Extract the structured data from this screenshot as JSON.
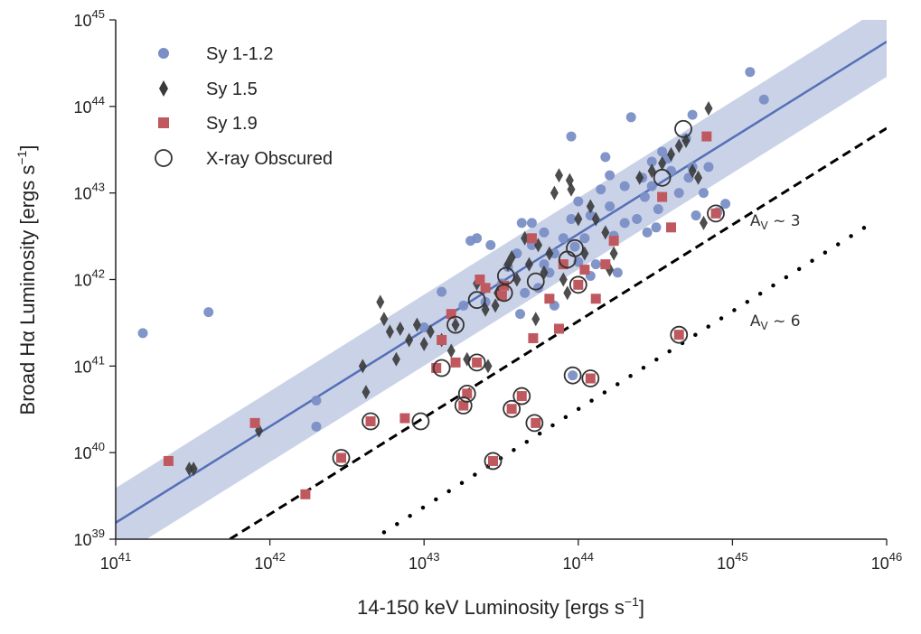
{
  "chart_data": {
    "type": "scatter",
    "xlabel": "14-150 keV Luminosity [ergs s⁻¹]",
    "ylabel": "Broad Hα Luminosity [ergs s⁻¹]",
    "xscale": "log",
    "yscale": "log",
    "xlim": [
      1e+41,
      1e+46
    ],
    "ylim": [
      1e+39,
      1e+45
    ],
    "x_ticks": [
      {
        "base": "10",
        "exp": "41"
      },
      {
        "base": "10",
        "exp": "42"
      },
      {
        "base": "10",
        "exp": "43"
      },
      {
        "base": "10",
        "exp": "44"
      },
      {
        "base": "10",
        "exp": "45"
      },
      {
        "base": "10",
        "exp": "46"
      }
    ],
    "y_ticks": [
      {
        "base": "10",
        "exp": "39"
      },
      {
        "base": "10",
        "exp": "40"
      },
      {
        "base": "10",
        "exp": "41"
      },
      {
        "base": "10",
        "exp": "42"
      },
      {
        "base": "10",
        "exp": "43"
      },
      {
        "base": "10",
        "exp": "44"
      },
      {
        "base": "10",
        "exp": "45"
      }
    ],
    "grid": false,
    "legend_position": "top-left",
    "colors": {
      "sy1": "#7a8fc6",
      "sy15": "#3a3a3a",
      "sy19": "#c0585f",
      "fit_line": "#5470b6",
      "band": "#b8c3e0",
      "obscured": "#333333",
      "ref_lines": "#000000"
    },
    "series": [
      {
        "name": "Sy 1-1.2",
        "marker": "circle",
        "points": [
          [
            4e+41,
            4.2e+41
          ],
          [
            1.5e+41,
            2.4e+41
          ],
          [
            2e+42,
            4e+40
          ],
          [
            2e+42,
            2e+40
          ],
          [
            1e+43,
            2.8e+41
          ],
          [
            1.3e+43,
            7.2e+41
          ],
          [
            1.8e+43,
            5e+41
          ],
          [
            2e+43,
            2.8e+42
          ],
          [
            2.2e+43,
            3e+42
          ],
          [
            2.5e+43,
            5.5e+41
          ],
          [
            2.7e+43,
            2.5e+42
          ],
          [
            3.2e+43,
            9e+41
          ],
          [
            3.5e+43,
            1.4e+42
          ],
          [
            4e+43,
            2e+42
          ],
          [
            4.2e+43,
            4e+41
          ],
          [
            4.3e+43,
            4.5e+42
          ],
          [
            4.5e+43,
            7e+41
          ],
          [
            5e+43,
            2.5e+42
          ],
          [
            5e+43,
            4.5e+42
          ],
          [
            5.5e+43,
            8e+41
          ],
          [
            6e+43,
            1.5e+42
          ],
          [
            6e+43,
            3.5e+42
          ],
          [
            6.5e+43,
            1.2e+42
          ],
          [
            7e+43,
            5e+41
          ],
          [
            7e+43,
            2e+42
          ],
          [
            8e+43,
            3e+42
          ],
          [
            9e+43,
            4.5e+43
          ],
          [
            9e+43,
            5e+42
          ],
          [
            9.5e+43,
            2.4e+42
          ],
          [
            1e+44,
            1.6e+42
          ],
          [
            1e+44,
            8e+42
          ],
          [
            1.1e+44,
            3e+42
          ],
          [
            1.2e+44,
            1.1e+42
          ],
          [
            1.2e+44,
            5.5e+42
          ],
          [
            1.3e+44,
            1.5e+42
          ],
          [
            1.4e+44,
            1.1e+43
          ],
          [
            1.5e+44,
            2.6e+43
          ],
          [
            1.6e+44,
            1.6e+43
          ],
          [
            1.6e+44,
            7e+42
          ],
          [
            1.8e+44,
            1.2e+42
          ],
          [
            2e+44,
            4.5e+42
          ],
          [
            2e+44,
            1.2e+43
          ],
          [
            2.2e+44,
            7.5e+43
          ],
          [
            2.4e+44,
            5e+42
          ],
          [
            2.6e+44,
            1.5e+43
          ],
          [
            2.8e+44,
            3.5e+42
          ],
          [
            3e+44,
            2.3e+43
          ],
          [
            3e+44,
            1.2e+43
          ],
          [
            3.2e+44,
            4e+42
          ],
          [
            3.5e+44,
            3e+43
          ],
          [
            3.8e+44,
            2.5e+43
          ],
          [
            4e+44,
            1.8e+43
          ],
          [
            4.5e+44,
            1e+43
          ],
          [
            5e+44,
            4.3e+43
          ],
          [
            5.2e+44,
            1.5e+43
          ],
          [
            5.5e+44,
            2e+43
          ],
          [
            5.5e+44,
            8e+43
          ],
          [
            5.8e+44,
            5.5e+42
          ],
          [
            6.5e+44,
            1e+43
          ],
          [
            7e+44,
            2e+43
          ],
          [
            8e+44,
            6e+42
          ],
          [
            9e+44,
            7.5e+42
          ],
          [
            1.3e+45,
            2.5e+44
          ],
          [
            1.6e+45,
            1.2e+44
          ],
          [
            3.3e+44,
            6.5e+42
          ],
          [
            2.7e+44,
            9e+42
          ],
          [
            1.7e+44,
            3.2e+42
          ],
          [
            9.2e+43,
            7.8e+40
          ]
        ]
      },
      {
        "name": "Sy 1.5",
        "marker": "diamond",
        "points": [
          [
            3e+41,
            6.5e+39
          ],
          [
            3.2e+41,
            6.5e+39
          ],
          [
            8.5e+41,
            1.8e+40
          ],
          [
            4e+42,
            1e+41
          ],
          [
            4.2e+42,
            5e+40
          ],
          [
            5.2e+42,
            5.5e+41
          ],
          [
            5.5e+42,
            3.5e+41
          ],
          [
            6e+42,
            2.5e+41
          ],
          [
            6.6e+42,
            1.2e+41
          ],
          [
            7e+42,
            2.7e+41
          ],
          [
            8e+42,
            2e+41
          ],
          [
            9e+42,
            3e+41
          ],
          [
            1e+43,
            1.8e+41
          ],
          [
            1.1e+43,
            2.5e+41
          ],
          [
            1.3e+43,
            2e+41
          ],
          [
            1.5e+43,
            1.5e+41
          ],
          [
            1.6e+43,
            3e+41
          ],
          [
            1.9e+43,
            1.2e+41
          ],
          [
            2.2e+43,
            9e+41
          ],
          [
            2.5e+43,
            4.5e+41
          ],
          [
            3e+43,
            7e+41
          ],
          [
            3.5e+43,
            1.5e+42
          ],
          [
            4e+43,
            1e+42
          ],
          [
            4.5e+43,
            3e+42
          ],
          [
            4.8e+43,
            1.5e+42
          ],
          [
            5.3e+43,
            3.5e+41
          ],
          [
            5.5e+43,
            2.5e+42
          ],
          [
            6e+43,
            1.2e+42
          ],
          [
            6.5e+43,
            2e+42
          ],
          [
            7e+43,
            1e+43
          ],
          [
            7.5e+43,
            1.6e+43
          ],
          [
            8e+43,
            1e+42
          ],
          [
            8.5e+43,
            7e+41
          ],
          [
            8.8e+43,
            1.4e+43
          ],
          [
            9e+43,
            1.1e+43
          ],
          [
            1e+44,
            5e+42
          ],
          [
            1.1e+44,
            2e+42
          ],
          [
            1.2e+44,
            7e+42
          ],
          [
            1.3e+44,
            5e+42
          ],
          [
            1.5e+44,
            3.5e+42
          ],
          [
            1.6e+44,
            1.3e+42
          ],
          [
            1.7e+44,
            2e+42
          ],
          [
            2.5e+44,
            1.5e+43
          ],
          [
            3e+44,
            1.8e+43
          ],
          [
            3.5e+44,
            2.2e+43
          ],
          [
            4e+44,
            2.8e+43
          ],
          [
            4.5e+44,
            3.5e+43
          ],
          [
            5e+44,
            4e+43
          ],
          [
            5.5e+44,
            1.8e+43
          ],
          [
            6e+44,
            1.5e+43
          ],
          [
            6.5e+44,
            4.5e+42
          ],
          [
            7e+44,
            9.5e+43
          ],
          [
            2.6e+43,
            1e+41
          ],
          [
            3.7e+43,
            1.8e+42
          ],
          [
            2.9e+43,
            5e+41
          ]
        ]
      },
      {
        "name": "Sy 1.9",
        "marker": "square",
        "points": [
          [
            2.2e+41,
            8e+39
          ],
          [
            8e+41,
            2.2e+40
          ],
          [
            1.7e+42,
            3.3e+39
          ],
          [
            2.9e+42,
            8.7e+39
          ],
          [
            4.5e+42,
            2.3e+40
          ],
          [
            7.5e+42,
            2.5e+40
          ],
          [
            1.2e+43,
            9.5e+40
          ],
          [
            1.3e+43,
            2e+41
          ],
          [
            1.5e+43,
            4e+41
          ],
          [
            1.8e+43,
            3.5e+40
          ],
          [
            1.9e+43,
            4.8e+40
          ],
          [
            2.2e+43,
            1.1e+41
          ],
          [
            2.3e+43,
            1e+42
          ],
          [
            2.5e+43,
            8e+41
          ],
          [
            2.8e+43,
            8e+39
          ],
          [
            3.2e+43,
            6.5e+41
          ],
          [
            3.3e+43,
            8.5e+41
          ],
          [
            3.7e+43,
            3.2e+40
          ],
          [
            4.3e+43,
            4.5e+40
          ],
          [
            5e+43,
            3e+42
          ],
          [
            5.1e+43,
            2.1e+41
          ],
          [
            5.3e+43,
            2.2e+40
          ],
          [
            6.5e+43,
            6e+41
          ],
          [
            7.5e+43,
            2.7e+41
          ],
          [
            8e+43,
            1.5e+42
          ],
          [
            1e+44,
            8.7e+41
          ],
          [
            1.1e+44,
            1.3e+42
          ],
          [
            1.2e+44,
            7.2e+40
          ],
          [
            1.3e+44,
            6e+41
          ],
          [
            1.5e+44,
            1.5e+42
          ],
          [
            1.7e+44,
            2.8e+42
          ],
          [
            3.5e+44,
            9e+42
          ],
          [
            4e+44,
            4e+42
          ],
          [
            4.5e+44,
            2.3e+41
          ],
          [
            6.8e+44,
            4.5e+43
          ],
          [
            7.8e+44,
            5.8e+42
          ],
          [
            1.6e+43,
            1.1e+41
          ]
        ]
      },
      {
        "name": "X-ray Obscured",
        "marker": "open-circle",
        "points": [
          [
            2.9e+42,
            8.7e+39
          ],
          [
            4.5e+42,
            2.3e+40
          ],
          [
            9.5e+42,
            2.3e+40
          ],
          [
            1.3e+43,
            9.5e+40
          ],
          [
            1.6e+43,
            3e+41
          ],
          [
            1.8e+43,
            3.5e+40
          ],
          [
            1.9e+43,
            4.8e+40
          ],
          [
            2.2e+43,
            1.1e+41
          ],
          [
            2.2e+43,
            5.8e+41
          ],
          [
            2.8e+43,
            8e+39
          ],
          [
            3.3e+43,
            7e+41
          ],
          [
            3.4e+43,
            1.1e+42
          ],
          [
            3.7e+43,
            3.2e+40
          ],
          [
            4.3e+43,
            4.5e+40
          ],
          [
            5.2e+43,
            2.2e+40
          ],
          [
            5.3e+43,
            9.5e+41
          ],
          [
            8.5e+43,
            1.7e+42
          ],
          [
            9.5e+43,
            2.3e+42
          ],
          [
            9.2e+43,
            7.8e+40
          ],
          [
            1e+44,
            8.7e+41
          ],
          [
            1.2e+44,
            7.2e+40
          ],
          [
            3.5e+44,
            1.5e+43
          ],
          [
            4.5e+44,
            2.3e+41
          ],
          [
            4.8e+44,
            5.5e+43
          ],
          [
            7.8e+44,
            5.8e+42
          ]
        ]
      }
    ],
    "fit": {
      "line": [
        [
          1e+41,
          1.55e+39
        ],
        [
          1e+46,
          5.6e+44
        ]
      ],
      "band_upper": [
        [
          1e+41,
          3.9e+39
        ],
        [
          1e+46,
          1.5e+45
        ]
      ],
      "band_lower": [
        [
          1e+41,
          6e+38
        ],
        [
          1e+46,
          2.2e+44
        ]
      ]
    },
    "reference_lines": [
      {
        "name": "A_V ~ 3",
        "style": "dashed",
        "points": [
          [
            5.5e+41,
            1e+39
          ],
          [
            1e+46,
            5.6e+43
          ]
        ]
      },
      {
        "name": "A_V ~ 6",
        "style": "dotted",
        "points": [
          [
            5.5e+42,
            1.2e+39
          ],
          [
            8e+45,
            4.5e+42
          ]
        ]
      }
    ],
    "annotations": [
      {
        "base": "A",
        "sub": "V",
        "suffix": " ~ 3",
        "at": [
          1.3e+45,
          4.2e+42
        ]
      },
      {
        "base": "A",
        "sub": "V",
        "suffix": " ~ 6",
        "at": [
          1.3e+45,
          2.9e+41
        ]
      }
    ]
  },
  "ui": {
    "legend_sy1": "Sy 1-1.2",
    "legend_sy15": "Sy 1.5",
    "legend_sy19": "Sy 1.9",
    "legend_obscured": "X-ray Obscured"
  }
}
